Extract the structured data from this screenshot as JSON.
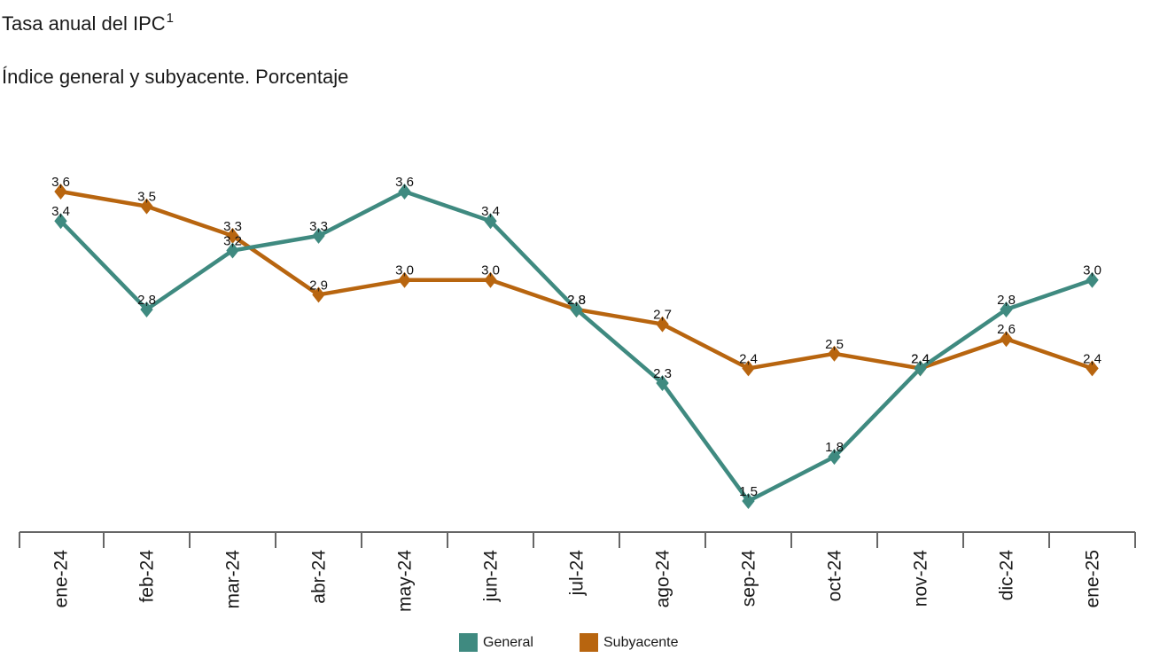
{
  "header": {
    "title": "Tasa anual del IPC",
    "title_footnote": "1",
    "subtitle": "Índice general y subyacente. Porcentaje"
  },
  "legend": {
    "items": [
      {
        "label": "General",
        "color": "#3f8a80"
      },
      {
        "label": "Subyacente",
        "color": "#b8650f"
      }
    ]
  },
  "chart_data": {
    "type": "line",
    "title": "Tasa anual del IPC",
    "subtitle": "Índice general y subyacente. Porcentaje",
    "xlabel": "",
    "ylabel": "",
    "categories": [
      "ene-24",
      "feb-24",
      "mar-24",
      "abr-24",
      "may-24",
      "jun-24",
      "jul-24",
      "ago-24",
      "sep-24",
      "oct-24",
      "nov-24",
      "dic-24",
      "ene-25"
    ],
    "series": [
      {
        "name": "General",
        "color": "#3f8a80",
        "marker": "diamond",
        "values": [
          3.4,
          2.8,
          3.2,
          3.3,
          3.6,
          3.4,
          2.8,
          2.3,
          1.5,
          1.8,
          2.4,
          2.8,
          3.0
        ],
        "labels": [
          "3,4",
          "2,8",
          "3,2",
          "3,3",
          "3,6",
          "3,4",
          "2,8",
          "2,3",
          "1,5",
          "1,8",
          "2,4",
          "2,8",
          "3,0"
        ]
      },
      {
        "name": "Subyacente",
        "color": "#b8650f",
        "marker": "diamond",
        "values": [
          3.6,
          3.5,
          3.3,
          2.9,
          3.0,
          3.0,
          2.8,
          2.7,
          2.4,
          2.5,
          2.4,
          2.6,
          2.4
        ],
        "labels": [
          "3,6",
          "3,5",
          "3,3",
          "2,9",
          "3,0",
          "3,0",
          "2,8",
          "2,7",
          "2,4",
          "2,5",
          "2,4",
          "2,6",
          "2,4"
        ]
      }
    ],
    "y_axis_visible": false,
    "ylim": [
      1.3,
      3.8
    ],
    "grid": false,
    "data_labels": true,
    "legend_position": "bottom-center",
    "axis_color": "#666666"
  }
}
